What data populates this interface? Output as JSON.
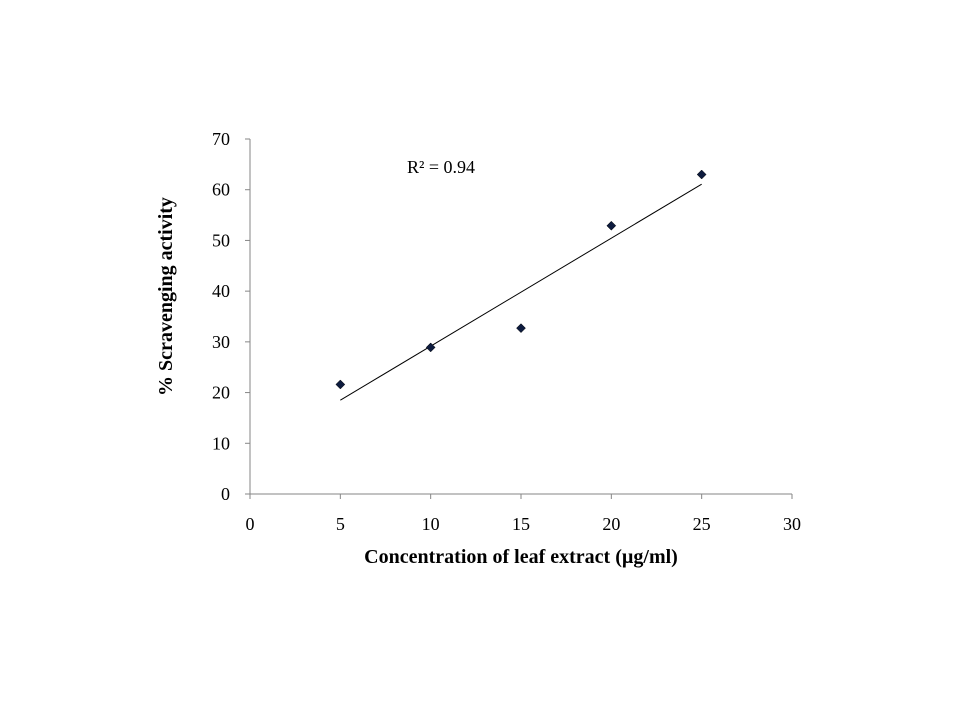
{
  "chart_data": {
    "type": "scatter",
    "xlabel": "Concentration of leaf extract (µg/ml)",
    "ylabel": "% Scravenging activity",
    "xlim": [
      0,
      30
    ],
    "ylim": [
      0,
      70
    ],
    "x_ticks": [
      0,
      5,
      10,
      15,
      20,
      25,
      30
    ],
    "y_ticks": [
      0,
      10,
      20,
      30,
      40,
      50,
      60,
      70
    ],
    "grid": false,
    "legend": "none",
    "marker": "diamond",
    "marker_color": "#0d1b3e",
    "series": [
      {
        "x": [
          5,
          10,
          15,
          20,
          25
        ],
        "y": [
          21.6,
          28.9,
          32.7,
          52.9,
          63.0
        ]
      }
    ],
    "trendline": {
      "type": "linear",
      "x_range": [
        5,
        25
      ],
      "y_values": [
        18.5,
        61.1
      ]
    },
    "annotation": "R² = 0.94"
  }
}
